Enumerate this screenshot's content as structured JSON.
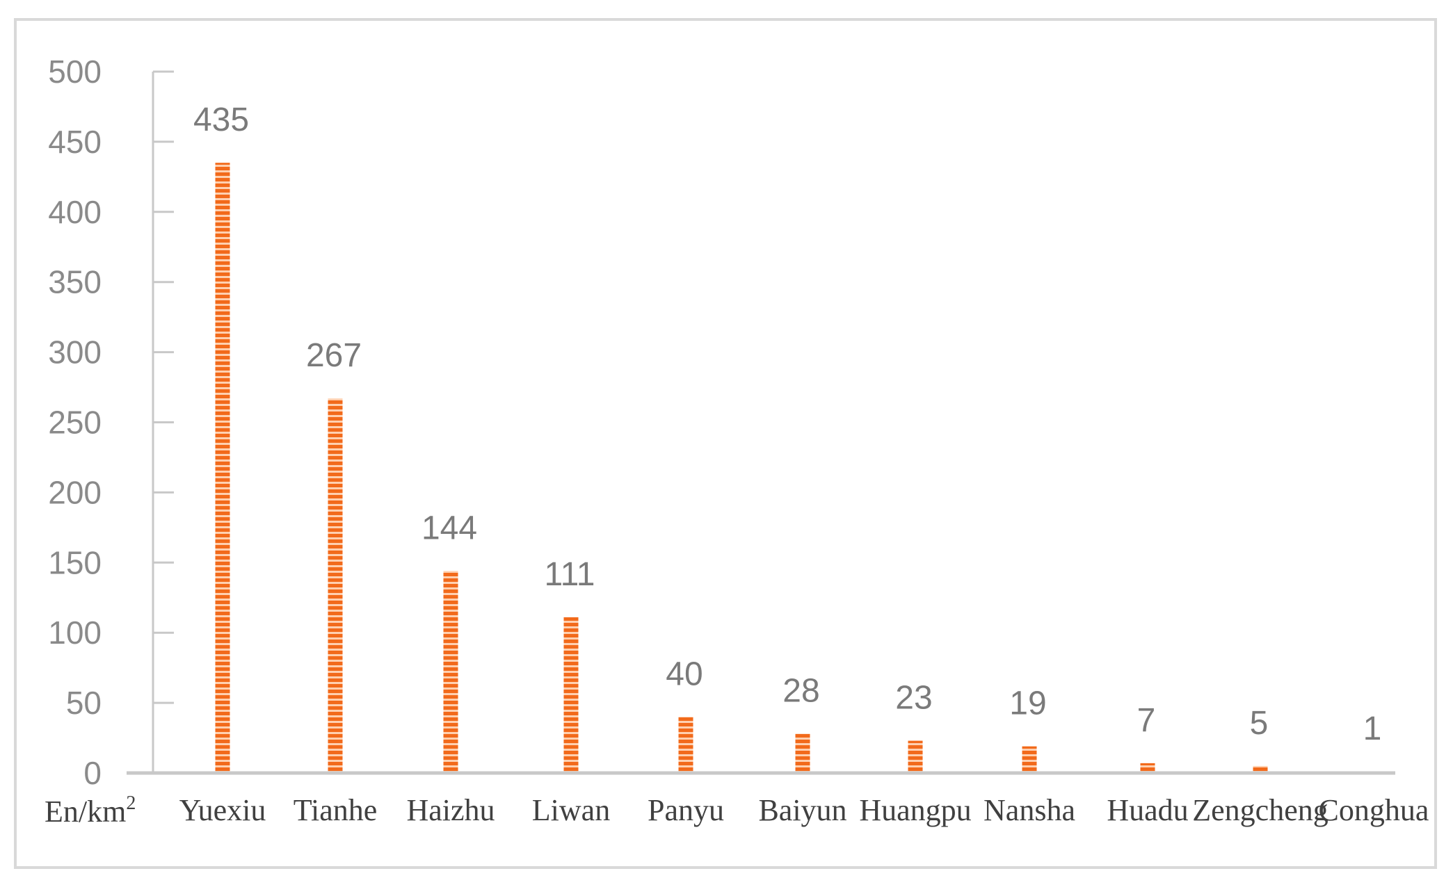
{
  "chart_data": {
    "type": "bar",
    "title": "",
    "xlabel": "",
    "ylabel": "",
    "unit_label": "En/km",
    "unit_superscript": "2",
    "categories": [
      "Yuexiu",
      "Tianhe",
      "Haizhu",
      "Liwan",
      "Panyu",
      "Baiyun",
      "Huangpu",
      "Nansha",
      "Huadu",
      "Zengcheng",
      "Conghua"
    ],
    "values": [
      435,
      267,
      144,
      111,
      40,
      28,
      23,
      19,
      7,
      5,
      1
    ],
    "data_labels": [
      "435",
      "267",
      "144",
      "111",
      "40",
      "28",
      "23",
      "19",
      "7",
      "5",
      "1"
    ],
    "ylim": [
      0,
      500
    ],
    "yticks": [
      0,
      50,
      100,
      150,
      200,
      250,
      300,
      350,
      400,
      450,
      500
    ],
    "grid": false,
    "legend": "none",
    "bar_color": "#f26a1b",
    "bar_stripe_color": "#ffd0b0",
    "axis_color": "#c8c8c8"
  }
}
